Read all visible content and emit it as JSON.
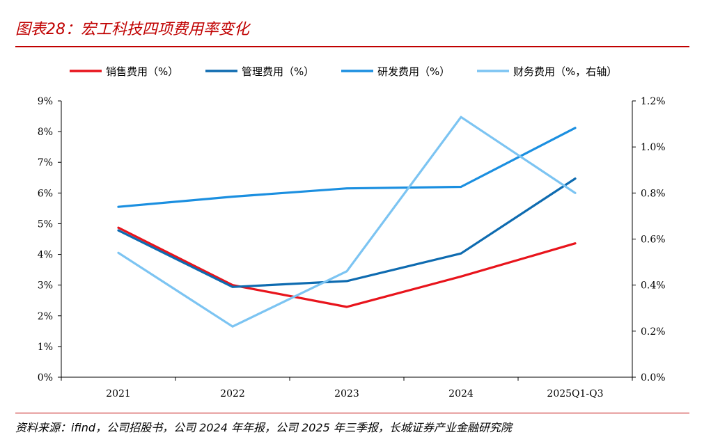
{
  "figure": {
    "title": "图表28：宏工科技四项费用率变化",
    "source": "资料来源：ifind，公司招股书，公司 2024 年年报，公司 2025 年三季报，长城证券产业金融研究院",
    "accent_color": "#c00000"
  },
  "chart_data": {
    "type": "line",
    "categories": [
      "2021",
      "2022",
      "2023",
      "2024",
      "2025Q1-Q3"
    ],
    "y_left": {
      "ticks": [
        "0%",
        "1%",
        "2%",
        "3%",
        "4%",
        "5%",
        "6%",
        "7%",
        "8%",
        "9%"
      ],
      "range": [
        0,
        9
      ]
    },
    "y_right": {
      "ticks": [
        "0.0%",
        "0.2%",
        "0.4%",
        "0.6%",
        "0.8%",
        "1.0%",
        "1.2%"
      ],
      "range": [
        0,
        1.2
      ]
    },
    "series": [
      {
        "name": "销售费用（%）",
        "axis": "left",
        "color": "#e8141c",
        "values": [
          4.87,
          3.0,
          2.29,
          3.28,
          4.36
        ]
      },
      {
        "name": "管理费用（%）",
        "axis": "left",
        "color": "#0e6bb0",
        "values": [
          4.78,
          2.94,
          3.13,
          4.03,
          6.47
        ]
      },
      {
        "name": "研发费用（%）",
        "axis": "left",
        "color": "#1b8fe0",
        "values": [
          5.55,
          5.88,
          6.15,
          6.2,
          8.12
        ]
      },
      {
        "name": "财务费用（%，右轴）",
        "axis": "right",
        "color": "#7cc4f2",
        "values": [
          0.54,
          0.22,
          0.46,
          1.13,
          0.8
        ]
      }
    ]
  }
}
